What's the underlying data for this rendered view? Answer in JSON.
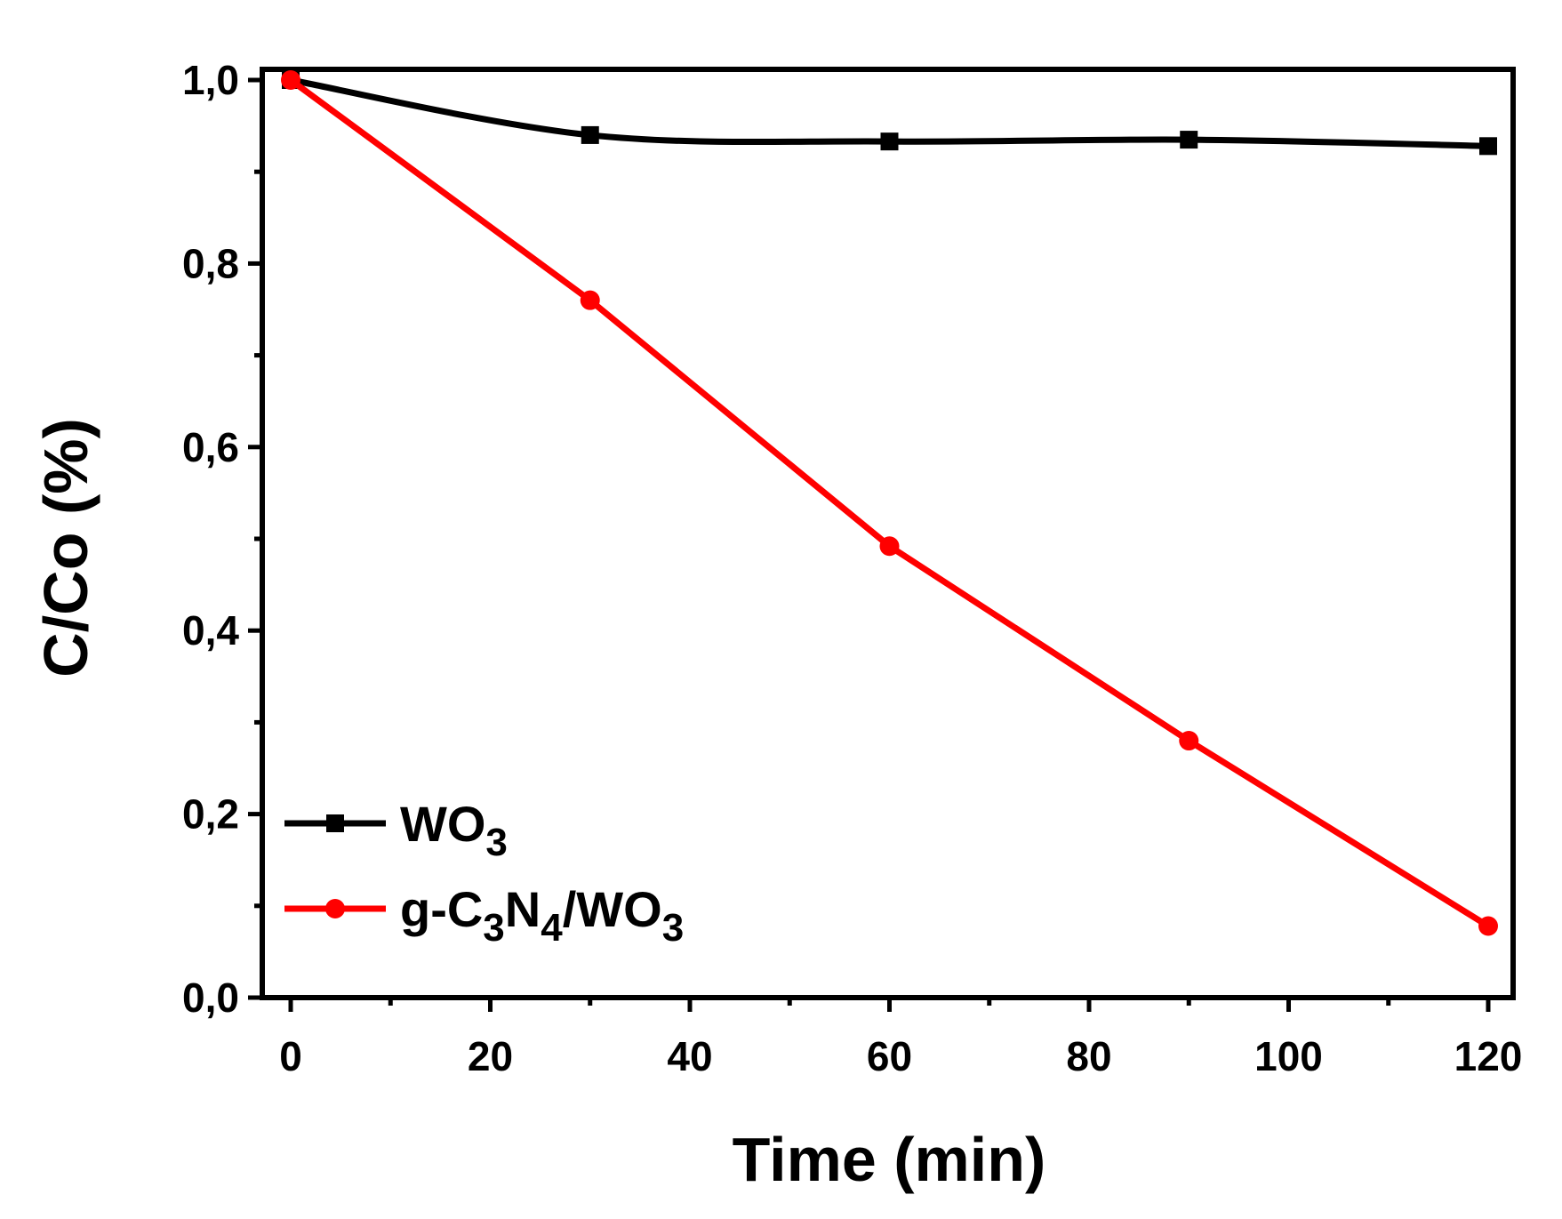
{
  "chart_data": {
    "type": "line",
    "title": "",
    "xlabel": "Time (min)",
    "ylabel": "C/Co (%)",
    "xlim": [
      -5,
      123
    ],
    "ylim": [
      0,
      1.0
    ],
    "xticks": [
      0,
      20,
      40,
      60,
      80,
      100,
      120
    ],
    "xtick_labels": [
      "0",
      "20",
      "40",
      "60",
      "80",
      "100",
      "120"
    ],
    "yticks": [
      0,
      0.2,
      0.4,
      0.6,
      0.8,
      1.0
    ],
    "ytick_labels": [
      "0,0",
      "0,2",
      "0,4",
      "0,6",
      "0,8",
      "1,0"
    ],
    "legend_position": "bottom-left",
    "series": [
      {
        "name": "WO3",
        "legend_parts": [
          {
            "text": "WO",
            "sub": false
          },
          {
            "text": "3",
            "sub": true
          }
        ],
        "color": "#000000",
        "marker": "square",
        "x": [
          0,
          30,
          60,
          90,
          120
        ],
        "y": [
          1.0,
          0.94,
          0.933,
          0.935,
          0.928
        ]
      },
      {
        "name": "g-C3N4/WO3",
        "legend_parts": [
          {
            "text": "g-C",
            "sub": false
          },
          {
            "text": "3",
            "sub": true
          },
          {
            "text": "N",
            "sub": false
          },
          {
            "text": "4",
            "sub": true
          },
          {
            "text": "/WO",
            "sub": false
          },
          {
            "text": "3",
            "sub": true
          }
        ],
        "color": "#ff0000",
        "marker": "circle",
        "x": [
          0,
          30,
          60,
          90,
          120
        ],
        "y": [
          1.0,
          0.76,
          0.492,
          0.28,
          0.078
        ]
      }
    ]
  }
}
